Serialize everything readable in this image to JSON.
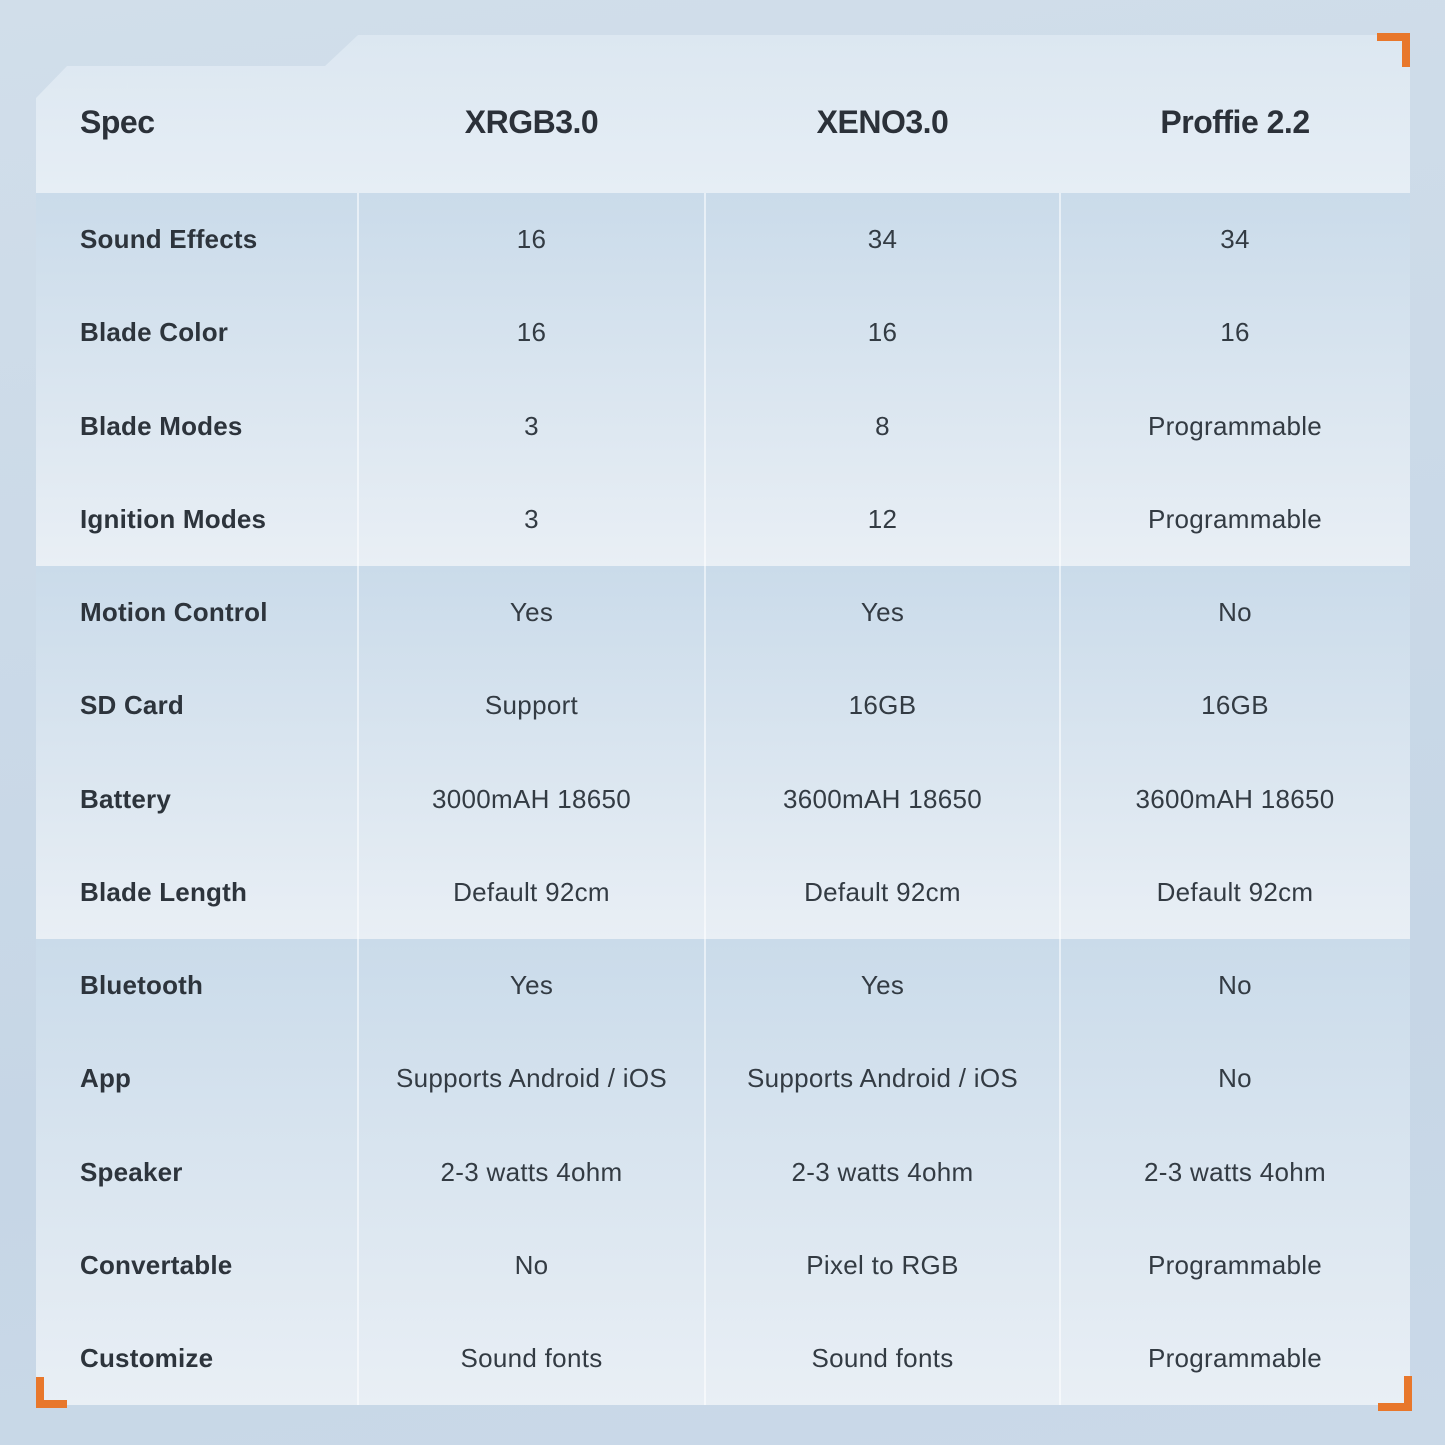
{
  "colors": {
    "accent_orange": "#E8772B",
    "text_dark": "#2D343C",
    "band_top": "#CADBEA",
    "band_bottom": "#E9EFF5",
    "header_top": "#DCE7F1",
    "header_bottom": "#E6EEF5",
    "page_bg_top": "#D1DEEA",
    "page_bg_bottom": "#C6D6E6"
  },
  "chart_data": {
    "type": "table",
    "title": "",
    "columns": [
      "Spec",
      "XRGB3.0",
      "XENO3.0",
      "Proffie 2.2"
    ],
    "rows": [
      {
        "label": "Sound Effects",
        "values": [
          "16",
          "34",
          "34"
        ]
      },
      {
        "label": "Blade Color",
        "values": [
          "16",
          "16",
          "16"
        ]
      },
      {
        "label": "Blade Modes",
        "values": [
          "3",
          "8",
          "Programmable"
        ]
      },
      {
        "label": "Ignition Modes",
        "values": [
          "3",
          "12",
          "Programmable"
        ]
      },
      {
        "label": "Motion Control",
        "values": [
          "Yes",
          "Yes",
          "No"
        ]
      },
      {
        "label": "SD Card",
        "values": [
          "Support",
          "16GB",
          "16GB"
        ]
      },
      {
        "label": "Battery",
        "values": [
          "3000mAH 18650",
          "3600mAH 18650",
          "3600mAH 18650"
        ]
      },
      {
        "label": "Blade Length",
        "values": [
          "Default 92cm",
          "Default 92cm",
          "Default 92cm"
        ]
      },
      {
        "label": "Bluetooth",
        "values": [
          "Yes",
          "Yes",
          "No"
        ]
      },
      {
        "label": "App",
        "values": [
          "Supports Android / iOS",
          "Supports Android / iOS",
          "No"
        ]
      },
      {
        "label": "Speaker",
        "values": [
          "2-3 watts 4ohm",
          "2-3 watts 4ohm",
          "2-3 watts 4ohm"
        ]
      },
      {
        "label": "Convertable",
        "values": [
          "No",
          "Pixel to RGB",
          "Programmable"
        ]
      },
      {
        "label": "Customize",
        "values": [
          "Sound fonts",
          "Sound fonts",
          "Programmable"
        ]
      }
    ],
    "layout": {
      "band_groups": [
        4,
        4,
        5
      ],
      "grid": "off",
      "legend": "none"
    }
  }
}
